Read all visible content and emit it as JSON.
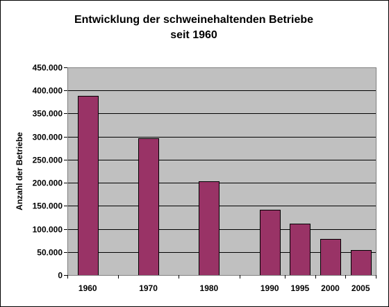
{
  "chart_data": {
    "type": "bar",
    "title_line1": "Entwicklung der schweinehaltenden Betriebe",
    "title_line2": "seit 1960",
    "xlabel": "",
    "ylabel": "Anzahl der Betriebe",
    "ylim": [
      0,
      450000
    ],
    "yticks": [
      0,
      50000,
      100000,
      150000,
      200000,
      250000,
      300000,
      350000,
      400000,
      450000
    ],
    "ytick_labels": [
      "0",
      "50.000",
      "100.000",
      "150.000",
      "200.000",
      "250.000",
      "300.000",
      "350.000",
      "400.000",
      "450.000"
    ],
    "xrange": [
      1956.65,
      2007.5
    ],
    "categories": [
      "1960",
      "1970",
      "1980",
      "1990",
      "1995",
      "2000",
      "2005"
    ],
    "x": [
      1960,
      1970,
      1980,
      1990,
      1995,
      2000,
      2005
    ],
    "values": [
      389000,
      296000,
      203000,
      142000,
      111000,
      79000,
      54000
    ],
    "grid": true,
    "colors": {
      "bar": "#993366",
      "plot_bg": "#c0c0c0",
      "grid": "#000000"
    }
  }
}
